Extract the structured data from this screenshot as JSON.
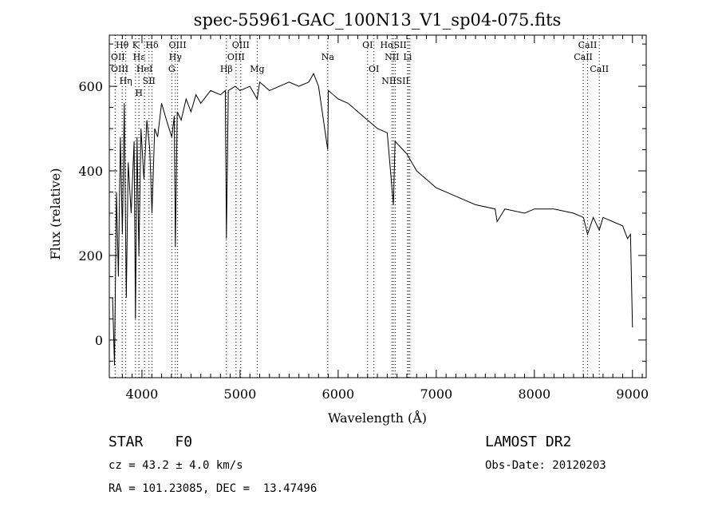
{
  "chart_data": {
    "type": "line",
    "title": "spec-55961-GAC_100N13_V1_sp04-075.fits",
    "xlabel": "Wavelength (Å)",
    "ylabel": "Flux (relative)",
    "xlim": [
      3667,
      9140
    ],
    "ylim": [
      -89,
      721
    ],
    "xticks": [
      4000,
      5000,
      6000,
      7000,
      8000,
      9000
    ],
    "yticks": [
      0,
      200,
      400,
      600
    ],
    "grid": false,
    "series": [
      {
        "name": "spectrum",
        "points": [
          [
            3700,
            100
          ],
          [
            3720,
            -60
          ],
          [
            3740,
            350
          ],
          [
            3760,
            150
          ],
          [
            3780,
            480
          ],
          [
            3800,
            250
          ],
          [
            3820,
            560
          ],
          [
            3840,
            100
          ],
          [
            3860,
            420
          ],
          [
            3890,
            300
          ],
          [
            3920,
            470
          ],
          [
            3934,
            50
          ],
          [
            3950,
            480
          ],
          [
            3969,
            200
          ],
          [
            3990,
            500
          ],
          [
            4020,
            380
          ],
          [
            4050,
            520
          ],
          [
            4080,
            450
          ],
          [
            4102,
            300
          ],
          [
            4130,
            500
          ],
          [
            4160,
            480
          ],
          [
            4200,
            560
          ],
          [
            4250,
            520
          ],
          [
            4304,
            480
          ],
          [
            4330,
            530
          ],
          [
            4340,
            220
          ],
          [
            4360,
            540
          ],
          [
            4400,
            520
          ],
          [
            4450,
            570
          ],
          [
            4500,
            540
          ],
          [
            4550,
            580
          ],
          [
            4600,
            560
          ],
          [
            4700,
            590
          ],
          [
            4800,
            580
          ],
          [
            4850,
            590
          ],
          [
            4861,
            240
          ],
          [
            4880,
            590
          ],
          [
            4950,
            600
          ],
          [
            5000,
            590
          ],
          [
            5100,
            600
          ],
          [
            5175,
            570
          ],
          [
            5200,
            610
          ],
          [
            5300,
            590
          ],
          [
            5400,
            600
          ],
          [
            5500,
            610
          ],
          [
            5600,
            600
          ],
          [
            5700,
            610
          ],
          [
            5750,
            630
          ],
          [
            5800,
            600
          ],
          [
            5894,
            450
          ],
          [
            5900,
            590
          ],
          [
            6000,
            570
          ],
          [
            6100,
            560
          ],
          [
            6200,
            540
          ],
          [
            6300,
            520
          ],
          [
            6400,
            500
          ],
          [
            6500,
            490
          ],
          [
            6563,
            320
          ],
          [
            6580,
            470
          ],
          [
            6700,
            440
          ],
          [
            6800,
            400
          ],
          [
            6900,
            380
          ],
          [
            7000,
            360
          ],
          [
            7200,
            340
          ],
          [
            7400,
            320
          ],
          [
            7600,
            310
          ],
          [
            7620,
            280
          ],
          [
            7700,
            310
          ],
          [
            7900,
            300
          ],
          [
            8000,
            310
          ],
          [
            8200,
            310
          ],
          [
            8400,
            300
          ],
          [
            8500,
            290
          ],
          [
            8542,
            250
          ],
          [
            8600,
            290
          ],
          [
            8662,
            260
          ],
          [
            8700,
            290
          ],
          [
            8900,
            270
          ],
          [
            8950,
            240
          ],
          [
            8980,
            250
          ],
          [
            9000,
            30
          ]
        ]
      }
    ],
    "line_markers": [
      {
        "label": "Hθ",
        "wave": 3798,
        "row": 0
      },
      {
        "label": "K",
        "wave": 3934,
        "row": 0
      },
      {
        "label": "Hδ",
        "wave": 4102,
        "row": 0
      },
      {
        "label": "OII",
        "wave": 3727,
        "row": 1
      },
      {
        "label": "Hε",
        "wave": 3970,
        "row": 1
      },
      {
        "label": "HeI",
        "wave": 4026,
        "row": 1
      },
      {
        "label": "SII",
        "wave": 4072,
        "row": 1
      },
      {
        "label": "OIII",
        "wave": 3727,
        "row": 2
      },
      {
        "label": "Hη",
        "wave": 3835,
        "row": 2
      },
      {
        "label": "H",
        "wave": 3969,
        "row": 2
      },
      {
        "label": "OIII",
        "wave": 4363,
        "row": 0
      },
      {
        "label": "Hγ",
        "wave": 4340,
        "row": 1
      },
      {
        "label": "G",
        "wave": 4304,
        "row": 2
      },
      {
        "label": "OIII",
        "wave": 5007,
        "row": 0
      },
      {
        "label": "OIII",
        "wave": 4959,
        "row": 1
      },
      {
        "label": "Hβ",
        "wave": 4861,
        "row": 2
      },
      {
        "label": "Mg",
        "wave": 5175,
        "row": 2
      },
      {
        "label": "Na",
        "wave": 5894,
        "row": 1
      },
      {
        "label": "OI",
        "wave": 6300,
        "row": 0
      },
      {
        "label": "OI",
        "wave": 6364,
        "row": 2
      },
      {
        "label": "HαSII",
        "wave": 6563,
        "row": 0
      },
      {
        "label": "NII",
        "wave": 6548,
        "row": 1
      },
      {
        "label": "Li",
        "wave": 6708,
        "row": 1
      },
      {
        "label": "NIISII",
        "wave": 6583,
        "row": 2
      },
      {
        "label": "",
        "wave": 6716,
        "row": 0
      },
      {
        "label": "",
        "wave": 6731,
        "row": 0
      },
      {
        "label": "CaII",
        "wave": 8542,
        "row": 0
      },
      {
        "label": "CaII",
        "wave": 8498,
        "row": 1
      },
      {
        "label": "CaII",
        "wave": 8662,
        "row": 2
      }
    ]
  },
  "info": {
    "class": "STAR",
    "subclass": "F0",
    "survey": "LAMOST DR2",
    "cz": "cz = 43.2 ± 4.0 km/s",
    "obs_date": "Obs-Date: 20120203",
    "coords": "RA = 101.23085, DEC =  13.47496"
  }
}
